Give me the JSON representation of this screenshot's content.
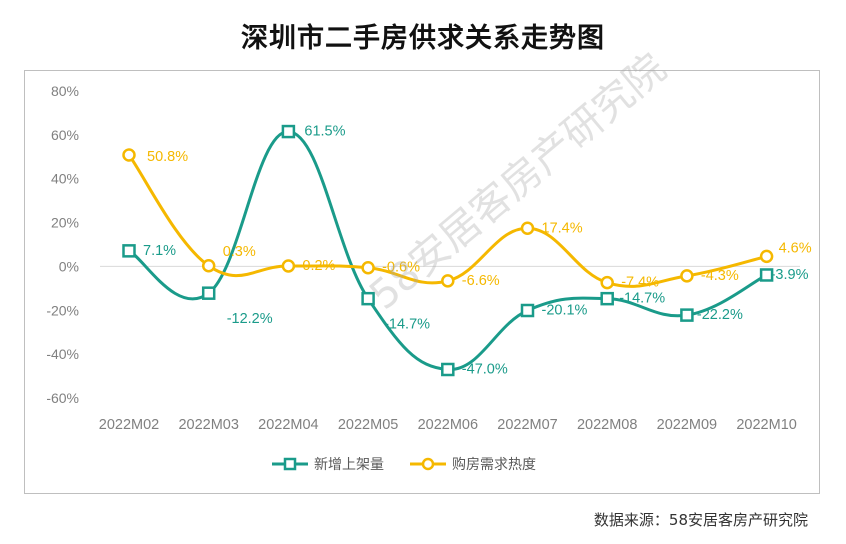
{
  "title": "深圳市二手房供求关系走势图",
  "source": "数据来源：58安居客房产研究院",
  "watermark": "58安居客房产研究院",
  "colors": {
    "supply": "#1a9b8a",
    "demand": "#f5b800",
    "axis_text": "#808080",
    "zero_line": "#d9d9d9"
  },
  "chart_data": {
    "type": "line",
    "categories": [
      "2022M02",
      "2022M03",
      "2022M04",
      "2022M05",
      "2022M06",
      "2022M07",
      "2022M08",
      "2022M09",
      "2022M10"
    ],
    "ylim": [
      -60,
      80
    ],
    "yticks": [
      "80%",
      "60%",
      "40%",
      "20%",
      "0%",
      "-20%",
      "-40%",
      "-60%"
    ],
    "ytick_values": [
      80,
      60,
      40,
      20,
      0,
      -20,
      -40,
      -60
    ],
    "legend_position": "bottom",
    "series": [
      {
        "name": "新增上架量",
        "values": [
          7.1,
          -12.2,
          61.5,
          -14.7,
          -47.0,
          -20.1,
          -14.7,
          -22.2,
          -3.9
        ],
        "labels": [
          "7.1%",
          "-12.2%",
          "61.5%",
          "-14.7%",
          "-47.0%",
          "-20.1%",
          "-14.7%",
          "-22.2%",
          "-3.9%"
        ],
        "marker": "square"
      },
      {
        "name": "购房需求热度",
        "values": [
          50.8,
          0.3,
          0.2,
          -0.6,
          -6.6,
          17.4,
          -7.4,
          -4.3,
          4.6
        ],
        "labels": [
          "50.8%",
          "0.3%",
          "0.2%",
          "-0.6%",
          "-6.6%",
          "17.4%",
          "-7.4%",
          "-4.3%",
          "4.6%"
        ],
        "marker": "circle"
      }
    ]
  }
}
